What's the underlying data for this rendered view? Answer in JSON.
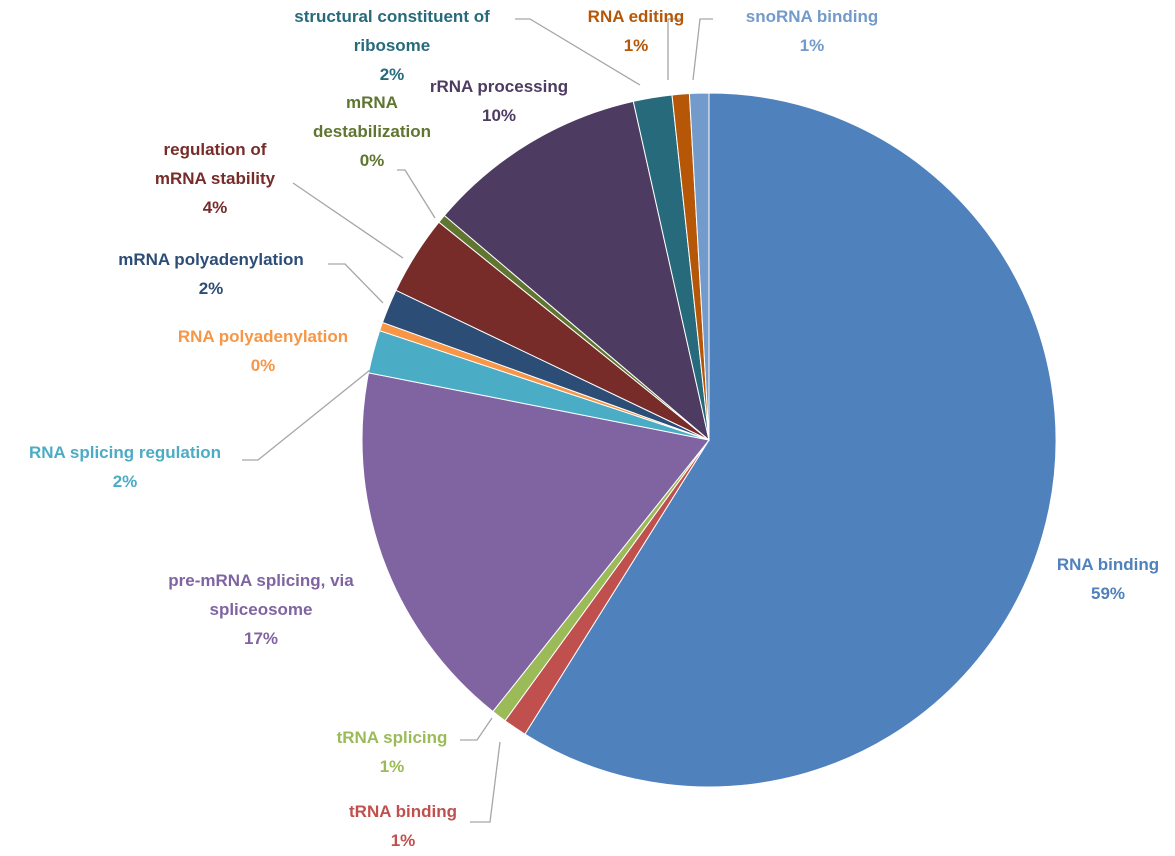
{
  "chart_data": {
    "type": "pie",
    "categories": [
      "RNA binding",
      "tRNA binding",
      "tRNA splicing",
      "pre-mRNA splicing, via spliceosome",
      "RNA splicing regulation",
      "RNA polyadenylation",
      "mRNA polyadenylation",
      "regulation of mRNA stability",
      "mRNA destabilization",
      "rRNA processing",
      "structural constituent of ribosome",
      "RNA editing",
      "snoRNA binding"
    ],
    "values": [
      58.9,
      1.1,
      0.7,
      17.4,
      2.0,
      0.4,
      1.6,
      3.7,
      0.4,
      10.3,
      1.8,
      0.8,
      0.9
    ],
    "value_labels": [
      "59%",
      "1%",
      "1%",
      "17%",
      "2%",
      "0%",
      "2%",
      "4%",
      "0%",
      "10%",
      "2%",
      "1%",
      "1%"
    ],
    "colors": [
      "#4f81bd",
      "#c0504d",
      "#9bbb59",
      "#8064a2",
      "#4bacc6",
      "#f79646",
      "#2c4d75",
      "#772c2a",
      "#5f7530",
      "#4d3b62",
      "#276a7c",
      "#b65708",
      "#729aca"
    ]
  }
}
